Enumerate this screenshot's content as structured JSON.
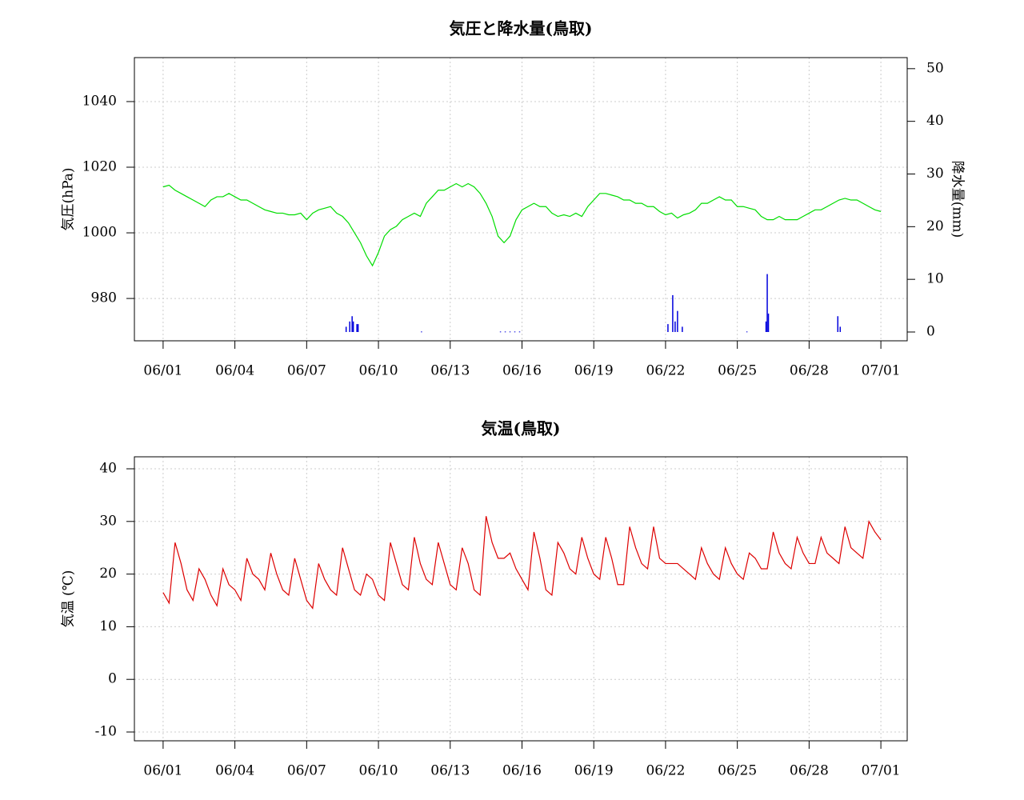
{
  "chart_data": [
    {
      "type": "line",
      "title": "気圧と降水量(鳥取)",
      "ylabel": "気圧(hPa)",
      "y2label": "降水量(mm)",
      "x": [
        0,
        0.25,
        0.5,
        0.75,
        1,
        1.25,
        1.5,
        1.75,
        2,
        2.25,
        2.5,
        2.75,
        3,
        3.25,
        3.5,
        3.75,
        4,
        4.25,
        4.5,
        4.75,
        5,
        5.25,
        5.5,
        5.75,
        6,
        6.25,
        6.5,
        6.75,
        7,
        7.25,
        7.5,
        7.75,
        8,
        8.25,
        8.5,
        8.75,
        9,
        9.25,
        9.5,
        9.75,
        10,
        10.25,
        10.5,
        10.75,
        11,
        11.25,
        11.5,
        11.75,
        12,
        12.25,
        12.5,
        12.75,
        13,
        13.25,
        13.5,
        13.75,
        14,
        14.25,
        14.5,
        14.75,
        15,
        15.25,
        15.5,
        15.75,
        16,
        16.25,
        16.5,
        16.75,
        17,
        17.25,
        17.5,
        17.75,
        18,
        18.25,
        18.5,
        18.75,
        19,
        19.25,
        19.5,
        19.75,
        20,
        20.25,
        20.5,
        20.75,
        21,
        21.25,
        21.5,
        21.75,
        22,
        22.25,
        22.5,
        22.75,
        23,
        23.25,
        23.5,
        23.75,
        24,
        24.25,
        24.5,
        24.75,
        25,
        25.25,
        25.5,
        25.75,
        26,
        26.25,
        26.5,
        26.75,
        27,
        27.25,
        27.5,
        27.75,
        28,
        28.25,
        28.5,
        28.75,
        29,
        29.25,
        29.5,
        29.75,
        30
      ],
      "series": [
        {
          "name": "気圧",
          "type": "line",
          "color": "#00dd00",
          "values": [
            1014,
            1014.5,
            1013,
            1012,
            1011,
            1010,
            1009,
            1008,
            1010,
            1011,
            1011,
            1012,
            1011,
            1010,
            1010,
            1009,
            1008,
            1007,
            1006.5,
            1006,
            1006,
            1005.5,
            1005.5,
            1006,
            1004,
            1006,
            1007,
            1007.5,
            1008,
            1006,
            1005,
            1003,
            1000,
            997,
            993,
            990,
            994,
            999,
            1001,
            1002,
            1004,
            1005,
            1006,
            1005,
            1009,
            1011,
            1013,
            1013,
            1014,
            1015,
            1014,
            1015,
            1014,
            1012,
            1009,
            1005,
            999,
            997,
            999,
            1004,
            1007,
            1008,
            1009,
            1008,
            1008,
            1006,
            1005,
            1005.5,
            1005,
            1006,
            1005,
            1008,
            1010,
            1012,
            1012,
            1011.5,
            1011,
            1010,
            1010,
            1009,
            1009,
            1008,
            1008,
            1006.5,
            1005.5,
            1006,
            1004.5,
            1005.5,
            1006,
            1007,
            1009,
            1009,
            1010,
            1011,
            1010,
            1010,
            1008,
            1008,
            1007.5,
            1007,
            1005,
            1004,
            1004,
            1005,
            1004,
            1004,
            1004,
            1005,
            1006,
            1007,
            1007,
            1008,
            1009,
            1010,
            1010.5,
            1010,
            1010,
            1009,
            1008,
            1007,
            1006.5
          ]
        },
        {
          "name": "降水量",
          "type": "bar",
          "axis": "y2",
          "color": "#0000dd",
          "x": [
            7.65,
            7.8,
            7.9,
            7.95,
            8.1,
            8.15,
            10.8,
            14.1,
            14.3,
            14.5,
            14.7,
            14.9,
            21.1,
            21.3,
            21.4,
            21.5,
            21.7,
            24.4,
            25.2,
            25.25,
            25.3,
            28.2,
            28.3
          ],
          "values": [
            1,
            2,
            3,
            2,
            1.5,
            1.5,
            0.1,
            0.1,
            0.1,
            0.1,
            0.1,
            0.1,
            1.5,
            7,
            2,
            4,
            1,
            0.1,
            2,
            11,
            3.5,
            3,
            1
          ]
        }
      ],
      "xlim": [
        -1.2,
        31.1
      ],
      "xticks": [
        {
          "value": 0,
          "label": "06/01"
        },
        {
          "value": 3,
          "label": "06/04"
        },
        {
          "value": 6,
          "label": "06/07"
        },
        {
          "value": 9,
          "label": "06/10"
        },
        {
          "value": 12,
          "label": "06/13"
        },
        {
          "value": 15,
          "label": "06/16"
        },
        {
          "value": 18,
          "label": "06/19"
        },
        {
          "value": 21,
          "label": "06/22"
        },
        {
          "value": 24,
          "label": "06/25"
        },
        {
          "value": 27,
          "label": "06/28"
        },
        {
          "value": 30,
          "label": "07/01"
        }
      ],
      "ylim": [
        967.1,
        1053.4
      ],
      "yticks": [
        980,
        1000,
        1020,
        1040
      ],
      "y2lim": [
        -1.67,
        52.1
      ],
      "y2ticks": [
        0,
        10,
        20,
        30,
        40,
        50
      ],
      "grid": true
    },
    {
      "type": "line",
      "title": "気温(鳥取)",
      "ylabel": "気温 (℃)",
      "x": [
        0,
        0.25,
        0.5,
        0.75,
        1,
        1.25,
        1.5,
        1.75,
        2,
        2.25,
        2.5,
        2.75,
        3,
        3.25,
        3.5,
        3.75,
        4,
        4.25,
        4.5,
        4.75,
        5,
        5.25,
        5.5,
        5.75,
        6,
        6.25,
        6.5,
        6.75,
        7,
        7.25,
        7.5,
        7.75,
        8,
        8.25,
        8.5,
        8.75,
        9,
        9.25,
        9.5,
        9.75,
        10,
        10.25,
        10.5,
        10.75,
        11,
        11.25,
        11.5,
        11.75,
        12,
        12.25,
        12.5,
        12.75,
        13,
        13.25,
        13.5,
        13.75,
        14,
        14.25,
        14.5,
        14.75,
        15,
        15.25,
        15.5,
        15.75,
        16,
        16.25,
        16.5,
        16.75,
        17,
        17.25,
        17.5,
        17.75,
        18,
        18.25,
        18.5,
        18.75,
        19,
        19.25,
        19.5,
        19.75,
        20,
        20.25,
        20.5,
        20.75,
        21,
        21.25,
        21.5,
        21.75,
        22,
        22.25,
        22.5,
        22.75,
        23,
        23.25,
        23.5,
        23.75,
        24,
        24.25,
        24.5,
        24.75,
        25,
        25.25,
        25.5,
        25.75,
        26,
        26.25,
        26.5,
        26.75,
        27,
        27.25,
        27.5,
        27.75,
        28,
        28.25,
        28.5,
        28.75,
        29,
        29.25,
        29.5,
        29.75,
        30
      ],
      "series": [
        {
          "name": "気温",
          "type": "line",
          "color": "#dd0000",
          "values": [
            16.5,
            14.5,
            26,
            22,
            17,
            15,
            21,
            19,
            16,
            14,
            21,
            18,
            17,
            15,
            23,
            20,
            19,
            17,
            24,
            20,
            17,
            16,
            23,
            19,
            15,
            13.5,
            22,
            19,
            17,
            16,
            25,
            21,
            17,
            16,
            20,
            19,
            16,
            15,
            26,
            22,
            18,
            17,
            27,
            22,
            19,
            18,
            26,
            22,
            18,
            17,
            25,
            22,
            17,
            16,
            31,
            26,
            23,
            23,
            24,
            21,
            19,
            17,
            28,
            23,
            17,
            16,
            26,
            24,
            21,
            20,
            27,
            23,
            20,
            19,
            27,
            23,
            18,
            18,
            29,
            25,
            22,
            21,
            29,
            23,
            22,
            22,
            22,
            21,
            20,
            19,
            25,
            22,
            20,
            19,
            25,
            22,
            20,
            19,
            24,
            23,
            21,
            21,
            28,
            24,
            22,
            21,
            27,
            24,
            22,
            22,
            27,
            24,
            23,
            22,
            29,
            25,
            24,
            23,
            30,
            28,
            26.5
          ]
        }
      ],
      "xlim": [
        -1.2,
        31.1
      ],
      "xticks": [
        {
          "value": 0,
          "label": "06/01"
        },
        {
          "value": 3,
          "label": "06/04"
        },
        {
          "value": 6,
          "label": "06/07"
        },
        {
          "value": 9,
          "label": "06/10"
        },
        {
          "value": 12,
          "label": "06/13"
        },
        {
          "value": 15,
          "label": "06/16"
        },
        {
          "value": 18,
          "label": "06/19"
        },
        {
          "value": 21,
          "label": "06/22"
        },
        {
          "value": 24,
          "label": "06/25"
        },
        {
          "value": 27,
          "label": "06/28"
        },
        {
          "value": 30,
          "label": "07/01"
        }
      ],
      "ylim": [
        -11.67,
        42.28
      ],
      "yticks": [
        -10,
        0,
        10,
        20,
        30,
        40
      ],
      "grid": true
    }
  ]
}
